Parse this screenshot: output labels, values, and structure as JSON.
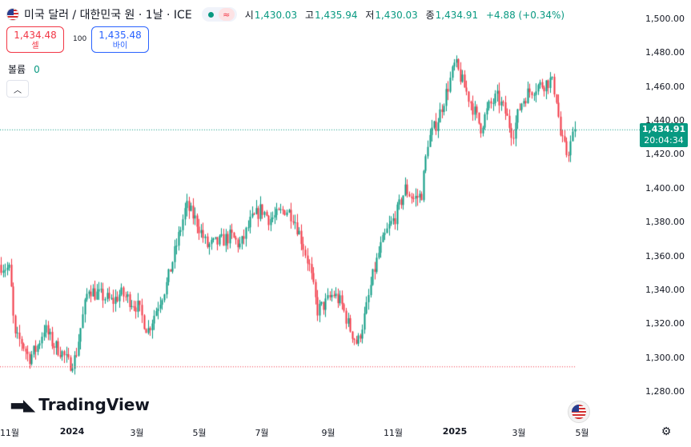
{
  "header": {
    "title": "미국 달러 / 대한민국 원 · 1날 · ICE",
    "flag_icon": "us-kr-flag-icon",
    "ohlc": {
      "open_label": "시",
      "open": "1,430.03",
      "high_label": "고",
      "high": "1,435.94",
      "low_label": "저",
      "low": "1,430.03",
      "close_label": "종",
      "close": "1,434.91",
      "change": "+4.88 (+0.34%)"
    }
  },
  "trade": {
    "sell_price": "1,434.48",
    "sell_label": "셀",
    "spread": "100",
    "buy_price": "1,435.48",
    "buy_label": "바이"
  },
  "volume": {
    "label": "볼륨",
    "value": "0"
  },
  "last_price": {
    "price": "1,434.91",
    "countdown": "20:04:34"
  },
  "branding": {
    "logo_text": "TradingView"
  },
  "colors": {
    "up": "#089981",
    "down": "#f23645",
    "accent": "#2962ff"
  },
  "chart_data": {
    "type": "candlestick",
    "y_ticks": [
      "1,500.00",
      "1,480.00",
      "1,460.00",
      "1,440.00",
      "1,420.00",
      "1,400.00",
      "1,380.00",
      "1,360.00",
      "1,340.00",
      "1,320.00",
      "1,300.00",
      "1,280.00"
    ],
    "x_ticks": [
      {
        "label": "11월",
        "bold": false
      },
      {
        "label": "2024",
        "bold": true
      },
      {
        "label": "3월",
        "bold": false
      },
      {
        "label": "5월",
        "bold": false
      },
      {
        "label": "7월",
        "bold": false
      },
      {
        "label": "9월",
        "bold": false
      },
      {
        "label": "11월",
        "bold": false
      },
      {
        "label": "2025",
        "bold": true
      },
      {
        "label": "3월",
        "bold": false
      },
      {
        "label": "5월",
        "bold": false
      }
    ],
    "ylim": [
      1280,
      1500
    ],
    "last_close": 1434.91,
    "dotted_low_line": 1295,
    "path": [
      [
        0,
        1355
      ],
      [
        12,
        1352
      ],
      [
        18,
        1312
      ],
      [
        26,
        1310
      ],
      [
        36,
        1300
      ],
      [
        46,
        1306
      ],
      [
        55,
        1318
      ],
      [
        66,
        1308
      ],
      [
        76,
        1304
      ],
      [
        86,
        1296
      ],
      [
        94,
        1300
      ],
      [
        102,
        1322
      ],
      [
        110,
        1342
      ],
      [
        118,
        1338
      ],
      [
        130,
        1336
      ],
      [
        140,
        1333
      ],
      [
        150,
        1338
      ],
      [
        160,
        1335
      ],
      [
        172,
        1330
      ],
      [
        184,
        1316
      ],
      [
        196,
        1330
      ],
      [
        208,
        1344
      ],
      [
        222,
        1370
      ],
      [
        232,
        1390
      ],
      [
        246,
        1380
      ],
      [
        258,
        1366
      ],
      [
        272,
        1368
      ],
      [
        288,
        1372
      ],
      [
        300,
        1366
      ],
      [
        312,
        1380
      ],
      [
        326,
        1388
      ],
      [
        336,
        1382
      ],
      [
        346,
        1384
      ],
      [
        356,
        1388
      ],
      [
        366,
        1384
      ],
      [
        376,
        1370
      ],
      [
        386,
        1354
      ],
      [
        396,
        1328
      ],
      [
        406,
        1332
      ],
      [
        416,
        1338
      ],
      [
        426,
        1332
      ],
      [
        436,
        1318
      ],
      [
        446,
        1308
      ],
      [
        456,
        1326
      ],
      [
        464,
        1346
      ],
      [
        474,
        1364
      ],
      [
        484,
        1376
      ],
      [
        494,
        1384
      ],
      [
        506,
        1400
      ],
      [
        516,
        1394
      ],
      [
        526,
        1396
      ],
      [
        534,
        1428
      ],
      [
        546,
        1440
      ],
      [
        558,
        1458
      ],
      [
        568,
        1474
      ],
      [
        578,
        1462
      ],
      [
        590,
        1448
      ],
      [
        600,
        1436
      ],
      [
        610,
        1448
      ],
      [
        620,
        1454
      ],
      [
        630,
        1446
      ],
      [
        640,
        1432
      ],
      [
        650,
        1450
      ],
      [
        658,
        1456
      ],
      [
        668,
        1460
      ],
      [
        680,
        1462
      ],
      [
        688,
        1464
      ],
      [
        694,
        1456
      ],
      [
        700,
        1430
      ],
      [
        708,
        1420
      ],
      [
        716,
        1432
      ],
      [
        720,
        1435
      ]
    ]
  }
}
